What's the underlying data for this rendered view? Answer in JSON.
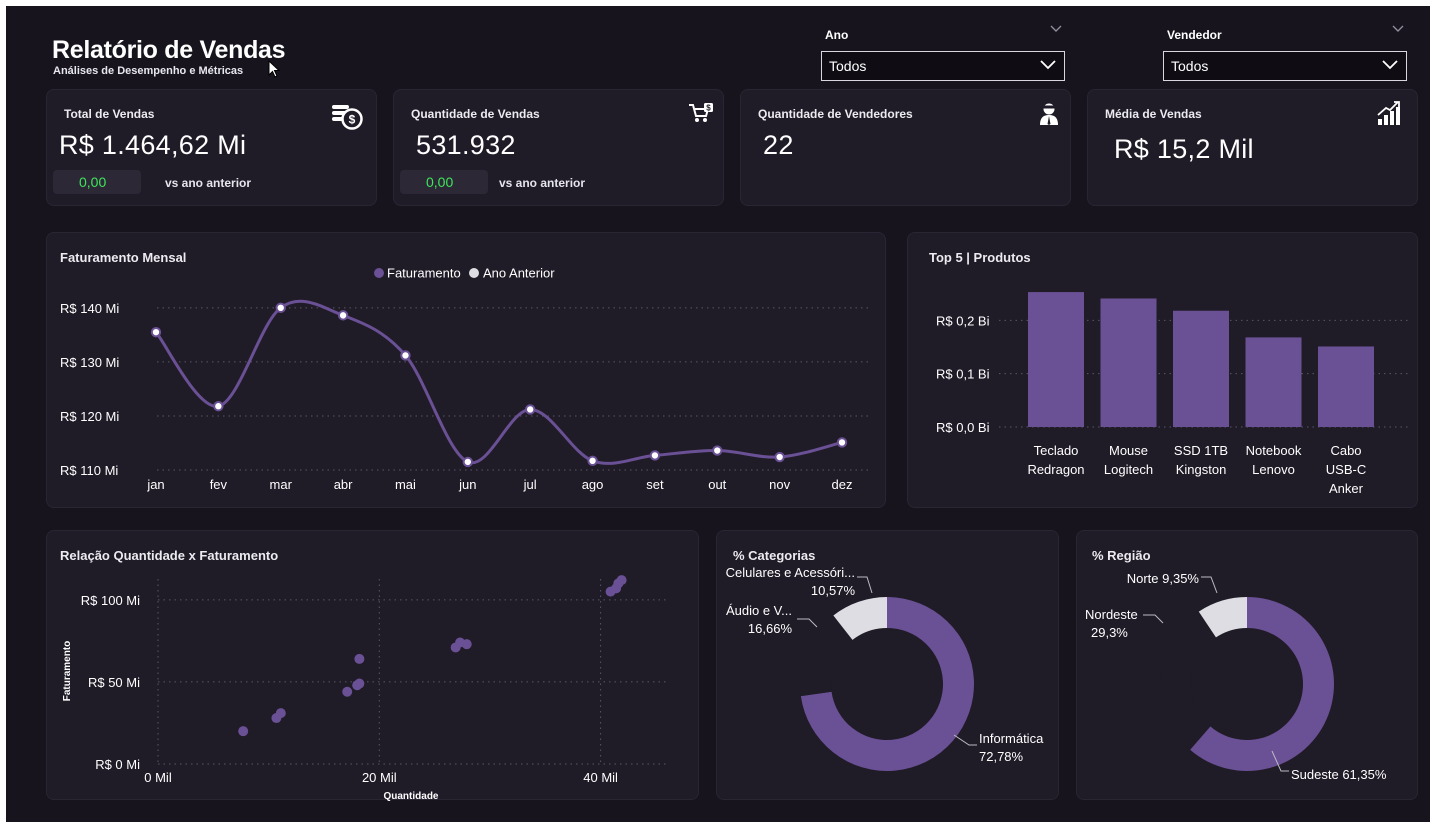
{
  "header": {
    "title": "Relatório de Vendas",
    "subtitle": "Análises de Desempenho e Métricas"
  },
  "filters": {
    "ano": {
      "label": "Ano",
      "value": "Todos"
    },
    "vendedor": {
      "label": "Vendedor",
      "value": "Todos"
    }
  },
  "kpis": {
    "total": {
      "label": "Total de Vendas",
      "value": "R$ 1.464,62 Mi",
      "delta": "0,00",
      "vs": "vs ano anterior"
    },
    "quantidade": {
      "label": "Quantidade de Vendas",
      "value": "531.932",
      "delta": "0,00",
      "vs": "vs ano anterior"
    },
    "vendedores": {
      "label": "Quantidade de Vendedores",
      "value": "22"
    },
    "media": {
      "label": "Média de Vendas",
      "value": "R$ 15,2 Mil"
    }
  },
  "colors": {
    "background": "#17141d",
    "card": "#1f1b27",
    "accent": "#6a5094",
    "delta_green": "#3ee65a",
    "light": "#dedde3",
    "dark_slice": "#1f1c27"
  },
  "chart_data": [
    {
      "id": "faturamento",
      "type": "line",
      "title": "Faturamento  Mensal",
      "legend": [
        "Faturamento",
        "Ano Anterior"
      ],
      "legend_position": "top-center",
      "categories": [
        "jan",
        "fev",
        "mar",
        "abr",
        "mai",
        "jun",
        "jul",
        "ago",
        "set",
        "out",
        "nov",
        "dez"
      ],
      "series": [
        {
          "name": "Faturamento",
          "values": [
            135.5,
            121.8,
            140.0,
            138.6,
            131.2,
            111.5,
            121.2,
            111.7,
            112.7,
            113.6,
            112.4,
            115.1
          ]
        }
      ],
      "yticks": [
        "R$ 140 Mi",
        "R$ 130 Mi",
        "R$ 120 Mi",
        "R$ 110 Mi"
      ],
      "ytick_values": [
        140,
        130,
        120,
        110
      ],
      "ylim": [
        110,
        142
      ],
      "grid": true
    },
    {
      "id": "top5",
      "type": "bar",
      "title": "Top 5 | Produtos",
      "categories": [
        [
          "Teclado",
          "Redragon"
        ],
        [
          "Mouse",
          "Logitech"
        ],
        [
          "SSD 1TB",
          "Kingston"
        ],
        [
          "Notebook",
          "Lenovo"
        ],
        [
          "Cabo",
          "USB-C",
          "Anker"
        ]
      ],
      "values": [
        0.253,
        0.241,
        0.218,
        0.168,
        0.151
      ],
      "yticks": [
        "R$ 0,2 Bi",
        "R$ 0,1 Bi",
        "R$ 0,0 Bi"
      ],
      "ytick_values": [
        0.2,
        0.1,
        0.0
      ],
      "ylim": [
        0,
        0.27
      ],
      "grid": true
    },
    {
      "id": "scatter",
      "type": "scatter",
      "title": "Relação Quantidade x Faturamento",
      "xlabel": "Quantidade",
      "ylabel": "Faturamento",
      "xticks": [
        "0 Mil",
        "20 Mil",
        "40 Mil"
      ],
      "xtick_values": [
        0,
        20,
        40
      ],
      "yticks": [
        "R$ 100 Mi",
        "R$ 50 Mi",
        "R$ 0 Mi"
      ],
      "ytick_values": [
        100,
        50,
        0
      ],
      "xlim": [
        0,
        46
      ],
      "ylim": [
        0,
        120
      ],
      "points": [
        {
          "x": 7.7,
          "y": 20
        },
        {
          "x": 10.7,
          "y": 28
        },
        {
          "x": 11.1,
          "y": 31
        },
        {
          "x": 17.1,
          "y": 44
        },
        {
          "x": 18.0,
          "y": 48
        },
        {
          "x": 18.2,
          "y": 49
        },
        {
          "x": 18.2,
          "y": 64
        },
        {
          "x": 26.9,
          "y": 71
        },
        {
          "x": 27.3,
          "y": 74
        },
        {
          "x": 27.9,
          "y": 73
        },
        {
          "x": 40.9,
          "y": 105
        },
        {
          "x": 41.4,
          "y": 107
        },
        {
          "x": 41.6,
          "y": 110
        },
        {
          "x": 41.9,
          "y": 112
        }
      ],
      "grid": true
    },
    {
      "id": "categorias",
      "type": "pie",
      "title": "% Categorias",
      "labels": [
        "Informática",
        "Áudio e V...",
        "Celulares e Acessóri..."
      ],
      "values": [
        72.78,
        16.66,
        10.57
      ],
      "value_labels": [
        "72,78%",
        "16,66%",
        "10,57%"
      ],
      "colors": [
        "#6a5094",
        "#1f1c27",
        "#dedde3"
      ]
    },
    {
      "id": "regiao",
      "type": "pie",
      "title": "% Região",
      "labels": [
        "Sudeste",
        "Nordeste",
        "Norte"
      ],
      "values": [
        61.35,
        29.3,
        9.35
      ],
      "value_labels": [
        "61,35%",
        "29,3%",
        "9,35%"
      ],
      "colors": [
        "#6a5094",
        "#1f1c27",
        "#dedde3"
      ]
    }
  ]
}
